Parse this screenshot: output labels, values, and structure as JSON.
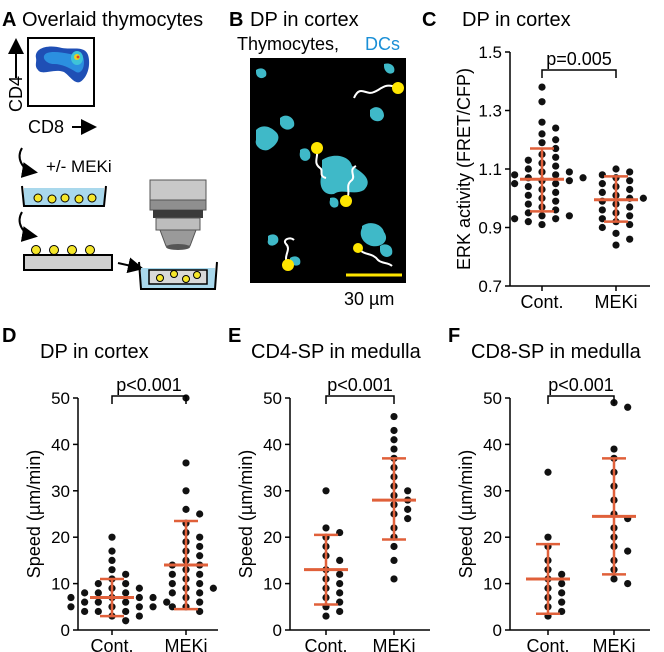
{
  "panel_a": {
    "letter": "A",
    "title": "Overlaid thymocytes",
    "y_axis_label": "CD4",
    "x_axis_label": "CD8",
    "step_label": "+/- MEKi"
  },
  "panel_b": {
    "letter": "B",
    "title": "DP in cortex",
    "legend_label_1": "Thymocytes,",
    "legend_label_2": "DCs",
    "scale_label": "30 µm",
    "colors": {
      "dc": "#3fb9c8",
      "scale_bar": "#ffe600",
      "thymocyte": "#ffffff"
    }
  },
  "colors": {
    "errorbar": "#e0603a",
    "dot": "#111111",
    "dc_text": "#1a8fd6"
  },
  "chart_data": [
    {
      "panel": "C",
      "type": "scatter",
      "title": "DP in cortex",
      "xlabel": "",
      "ylabel": "ERK activity (FRET/CFP)",
      "categories": [
        "Cont.",
        "MEKi"
      ],
      "ylim": [
        0.7,
        1.5
      ],
      "yticks": [
        0.7,
        0.9,
        1.1,
        1.3,
        1.5
      ],
      "ytick_labels": [
        "0.7",
        "0.9",
        "1.1",
        "1.3",
        "1.5"
      ],
      "series": [
        {
          "name": "Cont.",
          "mean": 1.065,
          "sd_low": 0.955,
          "sd_high": 1.17,
          "values": [
            1.38,
            1.33,
            1.26,
            1.24,
            1.22,
            1.2,
            1.19,
            1.17,
            1.15,
            1.14,
            1.13,
            1.12,
            1.11,
            1.1,
            1.09,
            1.09,
            1.08,
            1.08,
            1.07,
            1.07,
            1.06,
            1.06,
            1.05,
            1.05,
            1.04,
            1.03,
            1.02,
            1.01,
            1.0,
            0.99,
            0.98,
            0.97,
            0.96,
            0.95,
            0.94,
            0.94,
            0.93,
            0.93,
            0.92,
            0.91
          ]
        },
        {
          "name": "MEKi",
          "mean": 0.995,
          "sd_low": 0.92,
          "sd_high": 1.075,
          "values": [
            1.1,
            1.09,
            1.08,
            1.07,
            1.06,
            1.05,
            1.04,
            1.03,
            1.02,
            1.01,
            1.0,
            1.0,
            0.99,
            0.98,
            0.97,
            0.96,
            0.95,
            0.94,
            0.93,
            0.92,
            0.91,
            0.9,
            0.88,
            0.86,
            0.84
          ]
        }
      ],
      "significance": {
        "label": "p=0.005"
      }
    },
    {
      "panel": "D",
      "type": "scatter",
      "title": "DP in cortex",
      "xlabel": "",
      "ylabel": "Speed (µm/min)",
      "categories": [
        "Cont.",
        "MEKi"
      ],
      "ylim": [
        0,
        50
      ],
      "yticks": [
        0,
        10,
        20,
        30,
        40,
        50
      ],
      "ytick_labels": [
        "0",
        "10",
        "20",
        "30",
        "40",
        "50"
      ],
      "series": [
        {
          "name": "Cont.",
          "mean": 7,
          "sd_low": 3,
          "sd_high": 11,
          "values": [
            20,
            17,
            15,
            13,
            12,
            11,
            10,
            10,
            9,
            9,
            8,
            8,
            8,
            7,
            7,
            7,
            7,
            6,
            6,
            6,
            6,
            5,
            5,
            5,
            5,
            4,
            4,
            4,
            3,
            3,
            2
          ]
        },
        {
          "name": "MEKi",
          "mean": 14,
          "sd_low": 4.5,
          "sd_high": 23.5,
          "values": [
            50,
            36,
            30,
            26,
            25,
            23,
            21,
            20,
            19,
            18,
            17,
            16,
            15,
            14,
            14,
            13,
            12,
            12,
            11,
            10,
            10,
            9,
            9,
            8,
            8,
            7,
            6,
            5,
            5,
            4
          ]
        }
      ],
      "significance": {
        "label": "p<0.001"
      }
    },
    {
      "panel": "E",
      "type": "scatter",
      "title": "CD4-SP in medulla",
      "xlabel": "",
      "ylabel": "Speed (µm/min)",
      "categories": [
        "Cont.",
        "MEKi"
      ],
      "ylim": [
        0,
        50
      ],
      "yticks": [
        0,
        10,
        20,
        30,
        40,
        50
      ],
      "ytick_labels": [
        "0",
        "10",
        "20",
        "30",
        "40",
        "50"
      ],
      "series": [
        {
          "name": "Cont.",
          "mean": 13,
          "sd_low": 5.5,
          "sd_high": 20.5,
          "values": [
            30,
            22,
            21,
            20,
            18,
            16,
            15,
            13,
            12,
            11,
            10,
            9,
            8,
            7,
            6,
            5,
            4,
            3
          ]
        },
        {
          "name": "MEKi",
          "mean": 28,
          "sd_low": 19.5,
          "sd_high": 37,
          "values": [
            46,
            43,
            41,
            39,
            37,
            35,
            33,
            31,
            30,
            29,
            28,
            27,
            26,
            25,
            24,
            22,
            20,
            18,
            15,
            11
          ]
        }
      ],
      "significance": {
        "label": "p<0.001"
      }
    },
    {
      "panel": "F",
      "type": "scatter",
      "title": "CD8-SP in medulla",
      "xlabel": "",
      "ylabel": "Speed (µm/min)",
      "categories": [
        "Cont.",
        "MEKi"
      ],
      "ylim": [
        0,
        50
      ],
      "yticks": [
        0,
        10,
        20,
        30,
        40,
        50
      ],
      "ytick_labels": [
        "0",
        "10",
        "20",
        "30",
        "40",
        "50"
      ],
      "series": [
        {
          "name": "Cont.",
          "mean": 11,
          "sd_low": 3.5,
          "sd_high": 18.5,
          "values": [
            34,
            20,
            18,
            15,
            13,
            12,
            11,
            10,
            9,
            8,
            7,
            6,
            5,
            4,
            3
          ]
        },
        {
          "name": "MEKi",
          "mean": 24.5,
          "sd_low": 12,
          "sd_high": 37,
          "values": [
            49,
            48,
            39,
            37,
            34,
            31,
            28,
            25,
            24,
            22,
            20,
            18,
            17,
            15,
            13,
            11,
            10
          ]
        }
      ],
      "significance": {
        "label": "p<0.001"
      }
    }
  ]
}
